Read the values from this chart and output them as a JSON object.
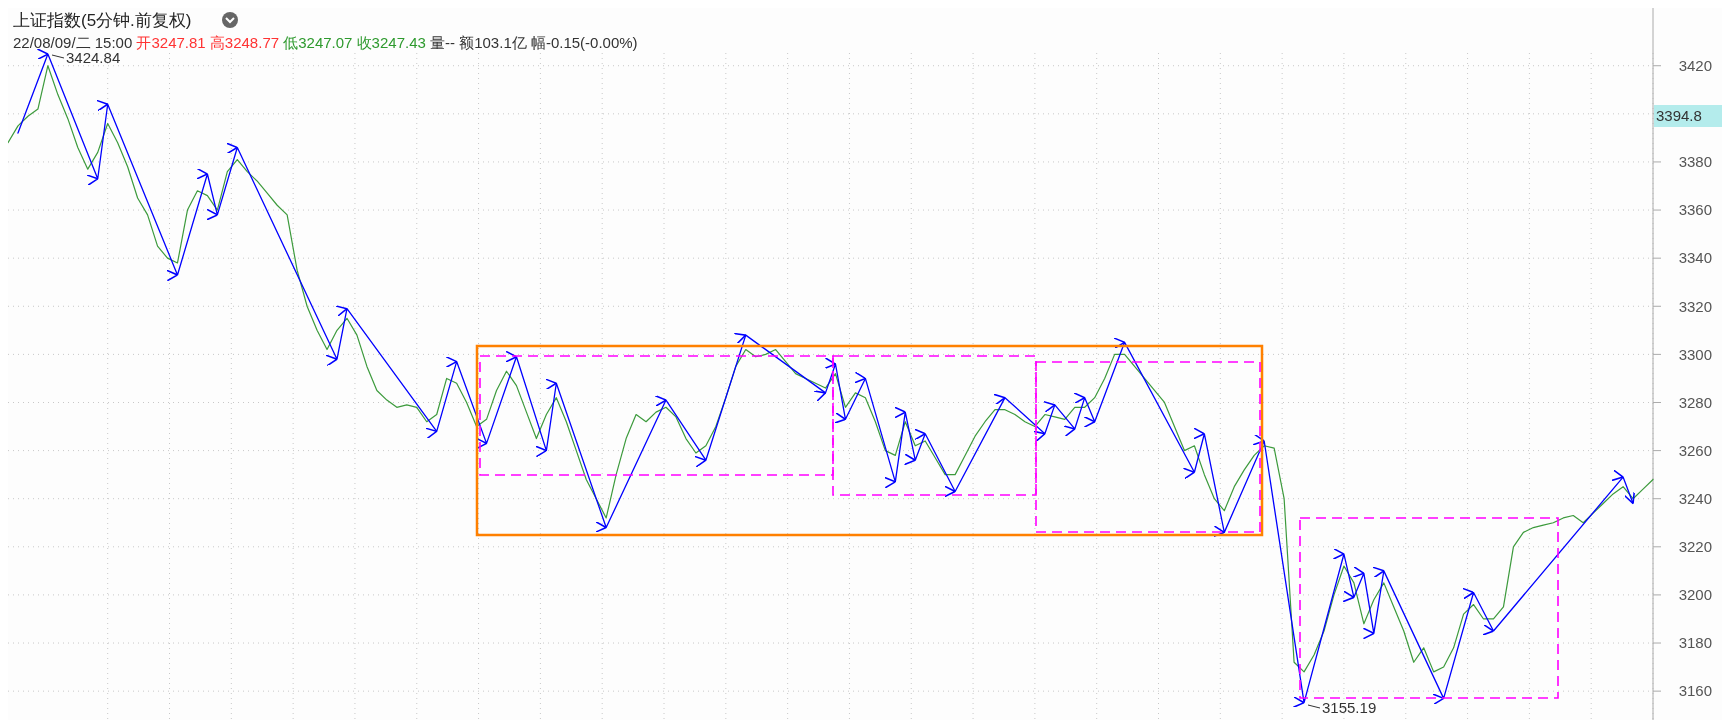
{
  "chart_data": {
    "type": "line",
    "title": "上证指数(5分钟.前复权)",
    "subtitle": "22/08/09/二 15:00 开3247.81 高3248.77 低3247.07 收3247.43 量-- 额103.1亿 幅-0.15(-0.00%)",
    "categories": [
      null,
      null,
      null,
      null,
      null,
      null,
      null,
      null,
      null,
      null,
      null,
      null,
      null,
      null,
      null,
      null,
      null,
      null,
      null,
      null,
      null,
      null,
      null,
      null,
      null,
      null,
      null,
      null,
      null,
      null,
      null,
      null,
      null,
      null,
      null,
      null,
      null,
      null,
      null,
      null,
      null,
      null,
      null,
      null,
      null,
      null,
      null,
      null,
      null,
      null,
      null,
      null,
      null,
      null,
      null,
      null,
      null,
      null,
      null,
      null,
      null,
      null,
      null,
      null,
      null,
      null,
      null,
      null,
      null,
      null,
      null,
      null,
      null,
      null,
      null,
      null,
      null,
      null,
      null,
      null,
      null,
      null,
      null,
      null,
      null,
      null,
      null,
      null,
      null,
      null,
      null,
      null,
      null,
      null,
      null,
      null,
      null,
      null,
      null,
      null,
      null,
      null,
      null,
      null,
      null,
      null,
      null,
      null,
      null,
      null,
      null,
      null,
      null,
      null,
      null,
      null,
      null,
      null,
      null,
      null,
      null,
      null,
      null,
      null,
      null,
      null,
      null,
      null,
      null,
      null,
      null,
      null,
      null,
      null,
      null,
      null,
      null,
      null,
      null,
      null,
      null,
      null,
      null,
      null,
      null,
      null,
      null,
      null,
      null,
      null,
      null,
      null,
      null,
      null,
      null,
      null,
      null,
      null,
      null,
      null,
      null,
      null,
      null,
      null,
      null,
      null
    ],
    "ylim": [
      3148,
      3444
    ],
    "yticks": [
      3160,
      3180,
      3200,
      3220,
      3240,
      3260,
      3280,
      3300,
      3320,
      3340,
      3360,
      3380,
      {
        "value": 3400,
        "label": null
      },
      3420
    ],
    "grid": true,
    "series": [
      {
        "color": "#3c9a3c",
        "values": [
          3388,
          3395,
          3399,
          3402,
          3420,
          3408,
          3398,
          3386,
          3377,
          3384,
          3396,
          3388,
          3378,
          3365,
          3358,
          3345,
          3340,
          3338,
          3360,
          3368,
          3366,
          3360,
          3376,
          3381,
          3376,
          3372,
          3367,
          3362,
          3358,
          3335,
          3320,
          3310,
          3302,
          3310,
          3315,
          3308,
          3295,
          3285,
          3281,
          3278,
          3279,
          3278,
          3272,
          3275,
          3290,
          3288,
          3280,
          3270,
          3273,
          3285,
          3293,
          3287,
          3276,
          3265,
          3275,
          3282,
          3272,
          3260,
          3248,
          3240,
          3232,
          3250,
          3265,
          3275,
          3272,
          3276,
          3278,
          3274,
          3265,
          3259,
          3262,
          3270,
          3282,
          3295,
          3302,
          3299,
          3300,
          3302,
          3297,
          3292,
          3290,
          3288,
          3286,
          3292,
          3278,
          3284,
          3282,
          3272,
          3260,
          3258,
          3272,
          3262,
          3264,
          3257,
          3250,
          3250,
          3258,
          3266,
          3272,
          3277,
          3277,
          3275,
          3272,
          3270,
          3275,
          3274,
          3273,
          3278,
          3278,
          3282,
          3290,
          3300,
          3300,
          3295,
          3290,
          3285,
          3280,
          3270,
          3260,
          3262,
          3250,
          3240,
          3235,
          3245,
          3252,
          3258,
          3262,
          3261,
          3240,
          3172,
          3168,
          3175,
          3185,
          3200,
          3212,
          3205,
          3188,
          3198,
          3205,
          3195,
          3185,
          3172,
          3178,
          3168,
          3170,
          3178,
          3192,
          3196,
          3190,
          3190,
          3195,
          3220,
          3226,
          3228,
          3229,
          3230,
          3232,
          3233,
          3230,
          3234,
          3238,
          3242,
          3245,
          3240,
          3244,
          3248
        ]
      },
      {
        "color": "#0000ff",
        "values": [
          null,
          3392,
          null,
          null,
          3424.84,
          null,
          null,
          null,
          null,
          3373,
          3404,
          null,
          null,
          null,
          null,
          null,
          null,
          3333,
          null,
          null,
          3375,
          3358,
          null,
          3386,
          null,
          null,
          null,
          null,
          null,
          null,
          null,
          null,
          null,
          3298,
          3319,
          null,
          null,
          null,
          null,
          null,
          null,
          null,
          null,
          3268,
          null,
          3297,
          null,
          null,
          3263,
          null,
          null,
          3299,
          null,
          null,
          3260,
          3288,
          null,
          null,
          null,
          null,
          3228,
          null,
          null,
          null,
          null,
          null,
          3281,
          null,
          null,
          null,
          3256,
          null,
          null,
          null,
          3308,
          null,
          null,
          null,
          null,
          null,
          null,
          null,
          3284,
          3296,
          3273,
          null,
          3290,
          null,
          null,
          3247,
          3276,
          3256,
          3267,
          null,
          null,
          3243,
          null,
          null,
          null,
          null,
          3282,
          null,
          null,
          null,
          3267,
          3279,
          null,
          3269,
          3282,
          3272,
          null,
          null,
          3305,
          null,
          null,
          null,
          null,
          null,
          null,
          3251,
          3267,
          null,
          3226,
          null,
          null,
          null,
          3264,
          null,
          null,
          null,
          3155.19,
          null,
          null,
          null,
          3217,
          3199,
          3209,
          3184,
          3210,
          null,
          null,
          null,
          null,
          null,
          3157,
          null,
          null,
          3201,
          null,
          3185,
          null,
          null,
          null,
          null,
          null,
          null,
          null,
          null,
          null,
          null,
          null,
          null,
          3249,
          3238,
          null,
          null
        ]
      }
    ],
    "annotations": [
      "3424.84",
      "3155.19",
      "3394.8"
    ]
  }
}
